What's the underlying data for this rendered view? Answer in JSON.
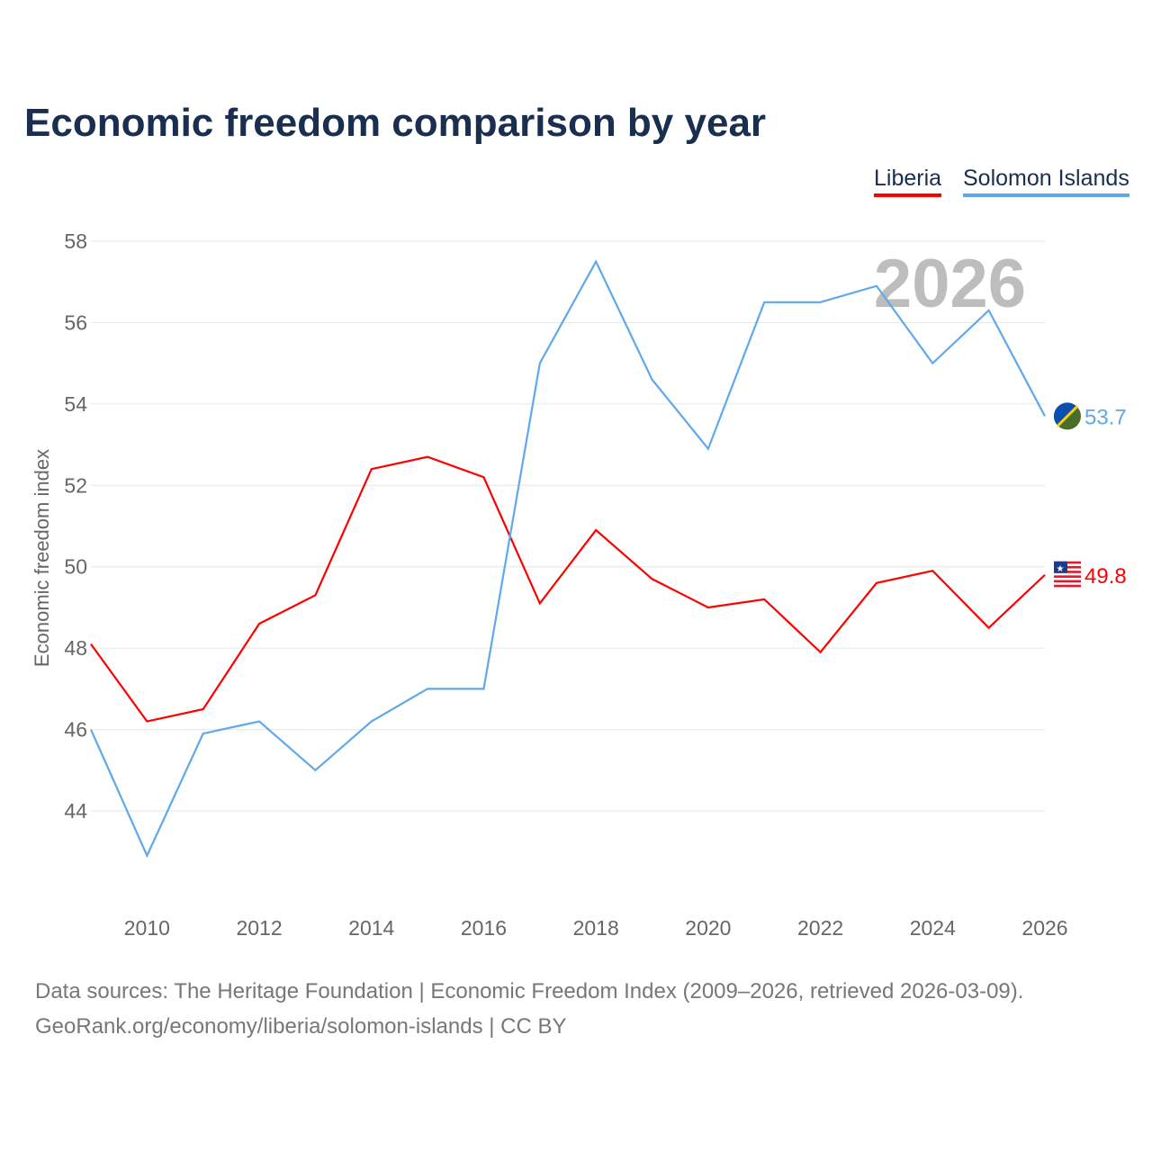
{
  "chart_data": {
    "type": "line",
    "title": "Economic freedom comparison by year",
    "xlabel": "",
    "ylabel": "Economic freedom index",
    "watermark_year": "2026",
    "x": [
      2009,
      2010,
      2011,
      2012,
      2013,
      2014,
      2015,
      2016,
      2017,
      2018,
      2019,
      2020,
      2021,
      2022,
      2023,
      2024,
      2025,
      2026
    ],
    "xticks": [
      2010,
      2012,
      2014,
      2016,
      2018,
      2020,
      2022,
      2024,
      2026
    ],
    "yticks": [
      44,
      46,
      48,
      50,
      52,
      54,
      56,
      58
    ],
    "xlim": [
      2009,
      2026
    ],
    "ylim": [
      42,
      58
    ],
    "grid": true,
    "legend_position": "top-right",
    "series": [
      {
        "name": "Liberia",
        "color": "#ff0000",
        "end_label": "49.8",
        "values": [
          48.1,
          46.2,
          46.5,
          48.6,
          49.3,
          52.4,
          52.7,
          52.2,
          49.1,
          50.9,
          49.7,
          49.0,
          49.2,
          47.9,
          49.6,
          49.9,
          48.5,
          49.8
        ]
      },
      {
        "name": "Solomon Islands",
        "color": "#5fa8ea",
        "end_label": "53.7",
        "values": [
          46.0,
          42.9,
          45.9,
          46.2,
          45.0,
          46.2,
          47.0,
          47.0,
          55.0,
          57.5,
          54.6,
          52.9,
          56.5,
          56.5,
          56.9,
          55.0,
          56.3,
          53.7
        ]
      }
    ]
  },
  "footer": {
    "line1": "Data sources: The Heritage Foundation | Economic Freedom Index (2009–2026, retrieved 2026-03-09).",
    "line2": "GeoRank.org/economy/liberia/solomon-islands | CC BY"
  }
}
